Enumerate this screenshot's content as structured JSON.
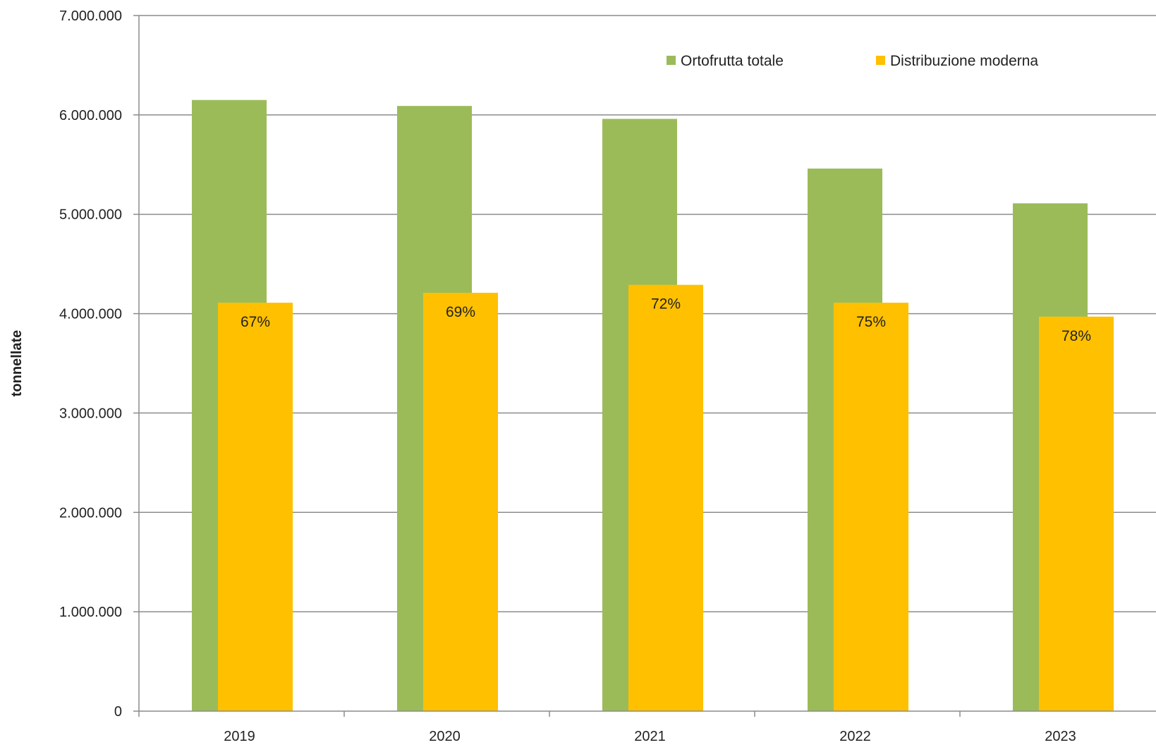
{
  "chart_data": {
    "type": "bar",
    "title": "",
    "xlabel": "",
    "ylabel": "tonnellate",
    "ylim": [
      0,
      7000000
    ],
    "yticks": [
      0,
      1000000,
      2000000,
      3000000,
      4000000,
      5000000,
      6000000,
      7000000
    ],
    "ytick_labels": [
      "0",
      "1.000.000",
      "2.000.000",
      "3.000.000",
      "4.000.000",
      "5.000.000",
      "6.000.000",
      "7.000.000"
    ],
    "categories": [
      "2019",
      "2020",
      "2021",
      "2022",
      "2023"
    ],
    "series": [
      {
        "name": "Ortofrutta totale",
        "color": "#9BBB59",
        "values": [
          6150000,
          6090000,
          5960000,
          5460000,
          5110000
        ]
      },
      {
        "name": "Distribuzione moderna",
        "color": "#FFC000",
        "values": [
          4110000,
          4210000,
          4290000,
          4110000,
          3970000
        ],
        "data_labels": [
          "67%",
          "69%",
          "72%",
          "75%",
          "78%"
        ]
      }
    ],
    "grid": true,
    "legend_position": "top-right"
  }
}
